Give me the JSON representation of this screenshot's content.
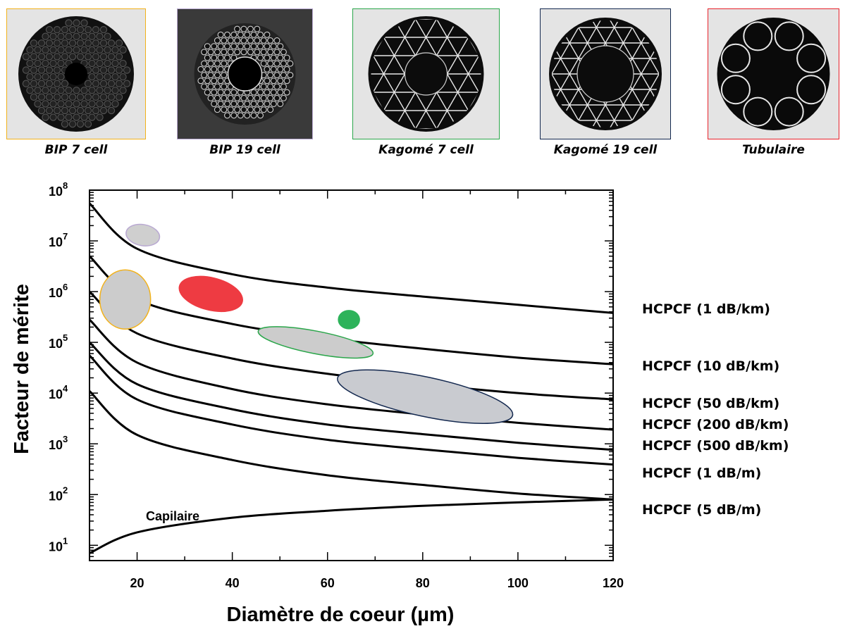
{
  "thumbnails": [
    {
      "caption": "BIP 7 cell",
      "color": "#f2b21b",
      "style": "bip7"
    },
    {
      "caption": "BIP 19 cell",
      "color": "#b9a9d2",
      "style": "bip19"
    },
    {
      "caption": "Kagomé 7 cell",
      "color": "#2aa64a",
      "style": "kag7"
    },
    {
      "caption": "Kagomé 19 cell",
      "color": "#13284f",
      "style": "kag19"
    },
    {
      "caption": "Tubulaire",
      "color": "#e8222b",
      "style": "tub"
    }
  ],
  "chart_data": {
    "type": "line",
    "xlabel": "Diamètre de coeur (µm)",
    "ylabel": "Facteur de mérite",
    "xlim": [
      10,
      120
    ],
    "ylim": [
      5,
      100000000
    ],
    "yscale": "log",
    "x_ticks": [
      "20",
      "40",
      "60",
      "80",
      "100",
      "120"
    ],
    "y_ticks": [
      {
        "base": "10",
        "exp": "1"
      },
      {
        "base": "10",
        "exp": "2"
      },
      {
        "base": "10",
        "exp": "3"
      },
      {
        "base": "10",
        "exp": "4"
      },
      {
        "base": "10",
        "exp": "5"
      },
      {
        "base": "10",
        "exp": "6"
      },
      {
        "base": "10",
        "exp": "7"
      },
      {
        "base": "10",
        "exp": "8"
      }
    ],
    "series": [
      {
        "name": "HCPCF (1 dB/km)",
        "x": [
          10,
          20,
          40,
          60,
          80,
          100,
          120
        ],
        "y": [
          55000000,
          7000000,
          2200000,
          1200000,
          800000,
          550000,
          380000
        ]
      },
      {
        "name": "HCPCF (10 dB/km)",
        "x": [
          10,
          20,
          40,
          60,
          80,
          100,
          120
        ],
        "y": [
          5000000,
          700000,
          230000,
          120000,
          75000,
          50000,
          37000
        ]
      },
      {
        "name": "HCPCF (50 dB/km)",
        "x": [
          10,
          20,
          40,
          60,
          80,
          100,
          120
        ],
        "y": [
          1000000,
          150000,
          48000,
          24000,
          15000,
          10000,
          7500
        ]
      },
      {
        "name": "HCPCF (200 dB/km)",
        "x": [
          10,
          20,
          40,
          60,
          80,
          100,
          120
        ],
        "y": [
          280000,
          40000,
          12000,
          6000,
          3800,
          2600,
          1900
        ]
      },
      {
        "name": "HCPCF (500 dB/km)",
        "x": [
          10,
          20,
          40,
          60,
          80,
          100,
          120
        ],
        "y": [
          100000,
          15000,
          4800,
          2400,
          1550,
          1050,
          760
        ]
      },
      {
        "name": "HCPCF (1 dB/m)",
        "x": [
          10,
          20,
          40,
          60,
          80,
          100,
          120
        ],
        "y": [
          55000,
          7500,
          2400,
          1200,
          780,
          530,
          390
        ]
      },
      {
        "name": "HCPCF (5 dB/m)",
        "x": [
          10,
          20,
          40,
          60,
          80,
          100,
          120
        ],
        "y": [
          11000,
          1500,
          480,
          240,
          155,
          105,
          80
        ]
      },
      {
        "name": "Capilaire",
        "x": [
          10,
          20,
          40,
          60,
          80,
          100,
          120
        ],
        "y": [
          7,
          18,
          35,
          48,
          60,
          70,
          80
        ]
      }
    ],
    "regions": [
      {
        "fiber": "BIP 19 cell",
        "x_center": 21.2,
        "y_center": 13000000,
        "fill": "#cfcfcf",
        "stroke": "#b9a9d2"
      },
      {
        "fiber": "BIP 7 cell",
        "x_center": 17.5,
        "y_center": 700000,
        "fill": "#cccccc",
        "stroke": "#f2b21b"
      },
      {
        "fiber": "Tubulaire",
        "x_center": 35.5,
        "y_center": 900000,
        "fill": "#ee3b42",
        "stroke": "#ee3b42"
      },
      {
        "fiber": "Kagomé 7 cell",
        "x_center": 64.5,
        "y_center": 280000,
        "fill": "#2db35a",
        "stroke": "#2db35a"
      },
      {
        "fiber": "Kagomé 7 cell",
        "x_center": 57.5,
        "y_center": 100000,
        "fill": "#cccccc",
        "stroke": "#2aa64a"
      },
      {
        "fiber": "Kagomé 19 cell",
        "x_center": 80.5,
        "y_center": 8500,
        "fill": "#c9cbd0",
        "stroke": "#13284f"
      }
    ]
  }
}
